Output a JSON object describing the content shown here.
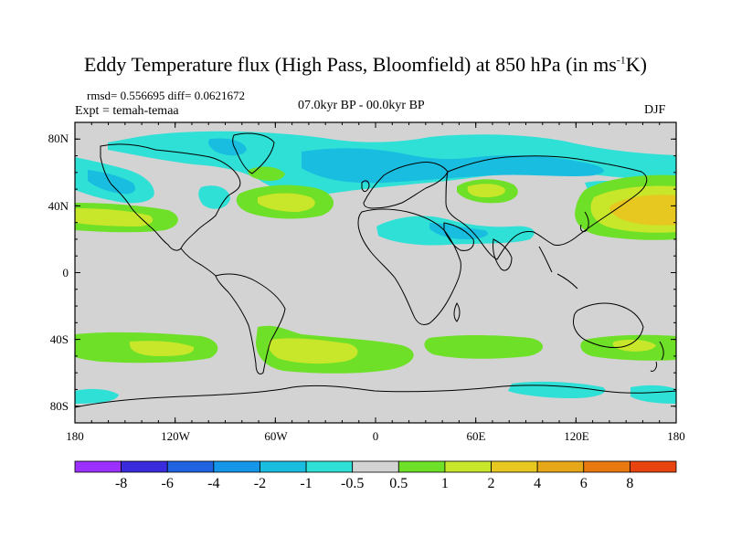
{
  "title_main": "Eddy Temperature flux (High Pass, Bloomfield) at 850 hPa (in ms",
  "title_sup": "-1",
  "title_end": "K)",
  "stats": "rmsd= 0.556695 diff= 0.0621672",
  "expt": "Expt = temah-temaa",
  "period": "07.0kyr BP - 00.0kyr BP",
  "season": "DJF",
  "lat_labels": [
    "80N",
    "40N",
    "0",
    "40S",
    "80S"
  ],
  "lon_labels": [
    "180",
    "120W",
    "60W",
    "0",
    "60E",
    "120E",
    "180"
  ],
  "colorbar": {
    "labels": [
      "-8",
      "-6",
      "-4",
      "-2",
      "-1",
      "-0.5",
      "0.5",
      "1",
      "2",
      "4",
      "6",
      "8"
    ],
    "colors": [
      "#9b30ff",
      "#3a2cdc",
      "#1f63e0",
      "#1596e8",
      "#19bde0",
      "#2fe0d6",
      "#d3d3d3",
      "#6ee028",
      "#c8e62a",
      "#e6c820",
      "#e6a818",
      "#e87a10",
      "#e84410"
    ]
  },
  "map_colors": {
    "background": "#d3d3d3",
    "neg_light": "#2fe0d6",
    "neg_mid": "#19bde0",
    "neg_dark": "#1596e8",
    "pos_green": "#6ee028",
    "pos_yellow": "#c8e62a",
    "pos_orange": "#e6c820"
  }
}
